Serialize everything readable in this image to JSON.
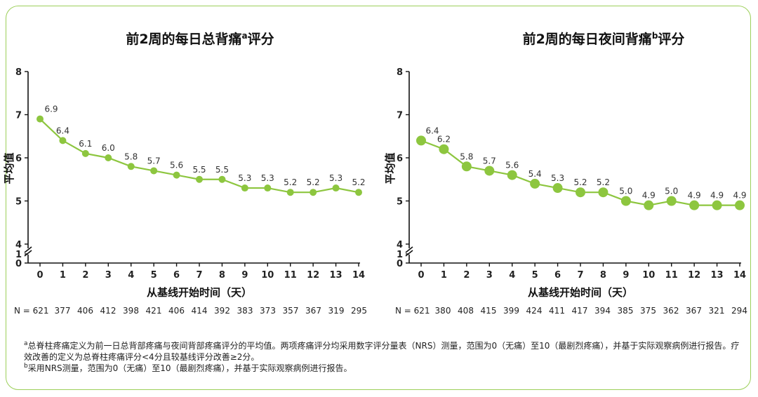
{
  "chart_data": [
    {
      "type": "line",
      "title": "前2周的每日总背痛",
      "title_sup": "a",
      "title_suffix": "评分",
      "xlabel": "从基线开始时间（天）",
      "ylabel": "平均值",
      "ylim": [
        4,
        8
      ],
      "y_ticks": [
        "8",
        "7",
        "6",
        "5",
        "4"
      ],
      "y_break_ticks": [
        "1",
        "0"
      ],
      "x": [
        0,
        1,
        2,
        3,
        4,
        5,
        6,
        7,
        8,
        9,
        10,
        11,
        12,
        13,
        14
      ],
      "x_tick_labels": [
        "0",
        "1",
        "2",
        "3",
        "4",
        "5",
        "6",
        "7",
        "8",
        "9",
        "10",
        "11",
        "12",
        "13",
        "14"
      ],
      "values": [
        6.9,
        6.4,
        6.1,
        6.0,
        5.8,
        5.7,
        5.6,
        5.5,
        5.5,
        5.3,
        5.3,
        5.2,
        5.2,
        5.3,
        5.2
      ],
      "value_labels": [
        "6.9",
        "6.4",
        "6.1",
        "6.0",
        "5.8",
        "5.7",
        "5.6",
        "5.5",
        "5.5",
        "5.3",
        "5.3",
        "5.2",
        "5.2",
        "5.3",
        "5.2"
      ],
      "n_prefix": "N = 621",
      "n_values": [
        "377",
        "406",
        "412",
        "398",
        "421",
        "406",
        "414",
        "392",
        "383",
        "373",
        "357",
        "367",
        "319",
        "295"
      ],
      "color": "#8dc63f"
    },
    {
      "type": "line",
      "title": "前2周的每日夜间背痛",
      "title_sup": "b",
      "title_suffix": "评分",
      "xlabel": "从基线开始时间（天）",
      "ylabel": "平均值",
      "ylim": [
        4,
        8
      ],
      "y_ticks": [
        "8",
        "7",
        "6",
        "5",
        "4"
      ],
      "y_break_ticks": [
        "1",
        "0"
      ],
      "x": [
        0,
        1,
        2,
        3,
        4,
        5,
        6,
        7,
        8,
        9,
        10,
        11,
        12,
        13,
        14
      ],
      "x_tick_labels": [
        "0",
        "1",
        "2",
        "3",
        "4",
        "5",
        "6",
        "7",
        "8",
        "9",
        "10",
        "11",
        "12",
        "13",
        "14"
      ],
      "values": [
        6.4,
        6.2,
        5.8,
        5.7,
        5.6,
        5.4,
        5.3,
        5.2,
        5.2,
        5.0,
        4.9,
        5.0,
        4.9,
        4.9,
        4.9
      ],
      "value_labels": [
        "6.4",
        "6.2",
        "5.8",
        "5.7",
        "5.6",
        "5.4",
        "5.3",
        "5.2",
        "5.2",
        "5.0",
        "4.9",
        "5.0",
        "4.9",
        "4.9",
        "4.9"
      ],
      "n_prefix": "N = 621",
      "n_values": [
        "380",
        "408",
        "415",
        "399",
        "424",
        "411",
        "417",
        "394",
        "385",
        "375",
        "362",
        "367",
        "321",
        "294"
      ],
      "color": "#8dc63f"
    }
  ],
  "footnotes": {
    "a_marker": "a",
    "a_text": "总脊柱疼痛定义为前一日总背部疼痛与夜间背部疼痛评分的平均值。两项疼痛评分均采用数字评分量表（NRS）测量，范围为0（无痛）至10（最剧烈疼痛），并基于实际观察病例进行报告。疗效改善的定义为总脊柱疼痛评分<4分且较基线评分改善≥2分。",
    "b_marker": "b",
    "b_text": "采用NRS测量，范围为0（无痛）至10（最剧烈疼痛），并基于实际观察病例进行报告。"
  }
}
